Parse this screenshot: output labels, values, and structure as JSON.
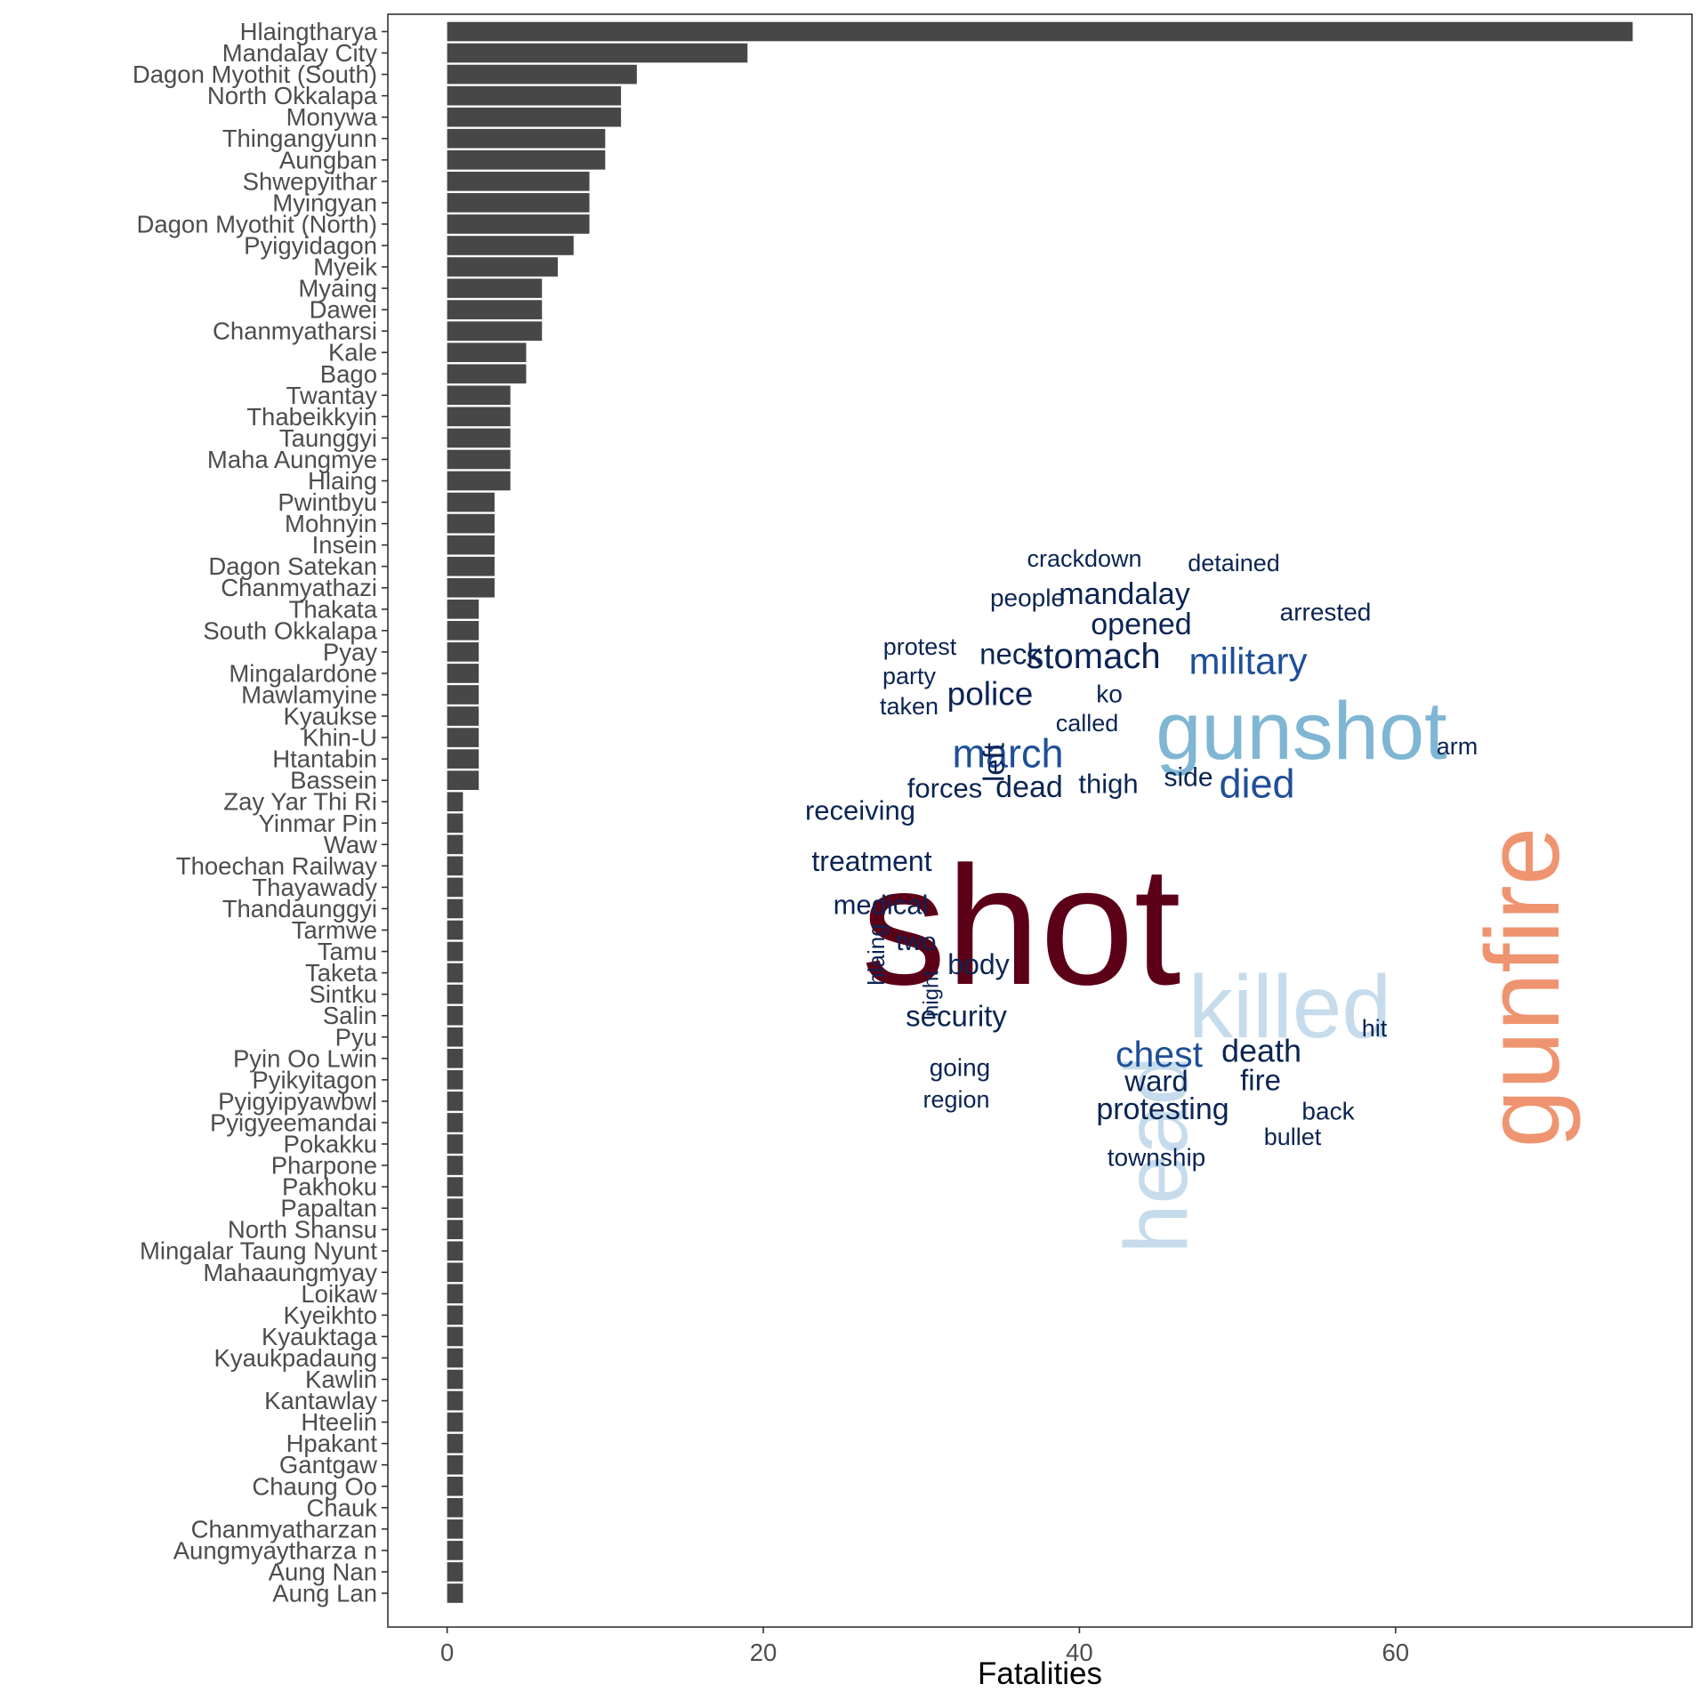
{
  "chart_data": {
    "type": "bar",
    "orientation": "horizontal",
    "title": "",
    "xlabel": "Fatalities",
    "ylabel": "",
    "xlim": [
      -3.75,
      78.75
    ],
    "xticks": [
      0,
      20,
      40,
      60
    ],
    "grid": false,
    "bar_color": "#474747",
    "categories": [
      "Hlaingtharya",
      "Mandalay City",
      "Dagon Myothit (South)",
      "North Okkalapa",
      "Monywa",
      "Thingangyunn",
      "Aungban",
      "Shwepyithar",
      "Myingyan",
      "Dagon Myothit (North)",
      "Pyigyidagon",
      "Myeik",
      "Myaing",
      "Dawei",
      "Chanmyatharsi",
      "Kale",
      "Bago",
      "Twantay",
      "Thabeikkyin",
      "Taunggyi",
      "Maha Aungmye",
      "Hlaing",
      "Pwintbyu",
      "Mohnyin",
      "Insein",
      "Dagon Satekan",
      "Chanmyathazi",
      "Thakata",
      "South Okkalapa",
      "Pyay",
      "Mingalardone",
      "Mawlamyine",
      "Kyaukse",
      "Khin-U",
      "Htantabin",
      "Bassein",
      "Zay Yar Thi Ri",
      "Yinmar Pin",
      "Waw",
      "Thoechan Railway",
      "Thayawady",
      "Thandaunggyi",
      "Tarmwe",
      "Tamu",
      "Taketa",
      "Sintku",
      "Salin",
      "Pyu",
      "Pyin Oo Lwin",
      "Pyikyitagon",
      "Pyigyipyawbwl",
      "Pyigyeemandai",
      "Pokakku",
      "Pharpone",
      "Pakhoku",
      "Papaltan",
      "North Shansu",
      "Mingalar Taung Nyunt",
      "Mahaaungmyay",
      "Loikaw",
      "Kyeikhto",
      "Kyauktaga",
      "Kyaukpadaung",
      "Kawlin",
      "Kantawlay",
      "Hteelin",
      "Hpakant",
      "Gantgaw",
      "Chaung Oo",
      "Chauk",
      "Chanmyatharzan",
      "Aungmyaytharza n",
      "Aung Nan",
      "Aung Lan"
    ],
    "values": [
      75,
      19,
      12,
      11,
      11,
      10,
      10,
      9,
      9,
      9,
      8,
      7,
      6,
      6,
      6,
      5,
      5,
      4,
      4,
      4,
      4,
      4,
      3,
      3,
      3,
      3,
      3,
      2,
      2,
      2,
      2,
      2,
      2,
      2,
      2,
      2,
      1,
      1,
      1,
      1,
      1,
      1,
      1,
      1,
      1,
      1,
      1,
      1,
      1,
      1,
      1,
      1,
      1,
      1,
      1,
      1,
      1,
      1,
      1,
      1,
      1,
      1,
      1,
      1,
      1,
      1,
      1,
      1,
      1,
      1,
      1,
      1,
      1,
      1
    ]
  },
  "word_cloud": {
    "words": [
      {
        "text": "shot",
        "color": "#5c0018"
      },
      {
        "text": "gunfire",
        "color": "#ef9470"
      },
      {
        "text": "gunshot",
        "color": "#7fb6d3"
      },
      {
        "text": "killed",
        "color": "#c6dcec"
      },
      {
        "text": "head",
        "color": "#c6dcec"
      },
      {
        "text": "march",
        "color": "#1f4f97"
      },
      {
        "text": "died",
        "color": "#1f4f97"
      },
      {
        "text": "military",
        "color": "#1f4f97"
      },
      {
        "text": "chest",
        "color": "#1f4f97"
      },
      {
        "text": "stomach",
        "color": "#0b2453"
      },
      {
        "text": "police",
        "color": "#0b2453"
      },
      {
        "text": "mandalay",
        "color": "#0b2453"
      },
      {
        "text": "opened",
        "color": "#0b2453"
      },
      {
        "text": "neck",
        "color": "#0b2453"
      },
      {
        "text": "death",
        "color": "#0b2453"
      },
      {
        "text": "protesting",
        "color": "#0b2453"
      },
      {
        "text": "dead",
        "color": "#0b2453"
      },
      {
        "text": "treatment",
        "color": "#0b2453"
      },
      {
        "text": "security",
        "color": "#0b2453"
      },
      {
        "text": "body",
        "color": "#0b2453"
      },
      {
        "text": "medical",
        "color": "#0b2453"
      },
      {
        "text": "receiving",
        "color": "#0b2453"
      },
      {
        "text": "forces",
        "color": "#0b2453"
      },
      {
        "text": "thigh",
        "color": "#0b2453"
      },
      {
        "text": "side",
        "color": "#0b2453"
      },
      {
        "text": "ward",
        "color": "#0b2453"
      },
      {
        "text": "fire",
        "color": "#0b2453"
      },
      {
        "text": "left",
        "color": "#0b2453"
      },
      {
        "text": "two",
        "color": "#0b2453"
      },
      {
        "text": "people",
        "color": "#0b2453"
      },
      {
        "text": "crackdown",
        "color": "#0b2453"
      },
      {
        "text": "detained",
        "color": "#0b2453"
      },
      {
        "text": "arrested",
        "color": "#0b2453"
      },
      {
        "text": "protest",
        "color": "#0b2453"
      },
      {
        "text": "party",
        "color": "#0b2453"
      },
      {
        "text": "taken",
        "color": "#0b2453"
      },
      {
        "text": "ko",
        "color": "#0b2453"
      },
      {
        "text": "called",
        "color": "#0b2453"
      },
      {
        "text": "arm",
        "color": "#0b2453"
      },
      {
        "text": "going",
        "color": "#0b2453"
      },
      {
        "text": "region",
        "color": "#0b2453"
      },
      {
        "text": "township",
        "color": "#0b2453"
      },
      {
        "text": "bullet",
        "color": "#0b2453"
      },
      {
        "text": "back",
        "color": "#0b2453"
      },
      {
        "text": "hit",
        "color": "#0b2453"
      },
      {
        "text": "hlaing",
        "color": "#0b2453"
      },
      {
        "text": "night",
        "color": "#0b2453"
      }
    ]
  }
}
